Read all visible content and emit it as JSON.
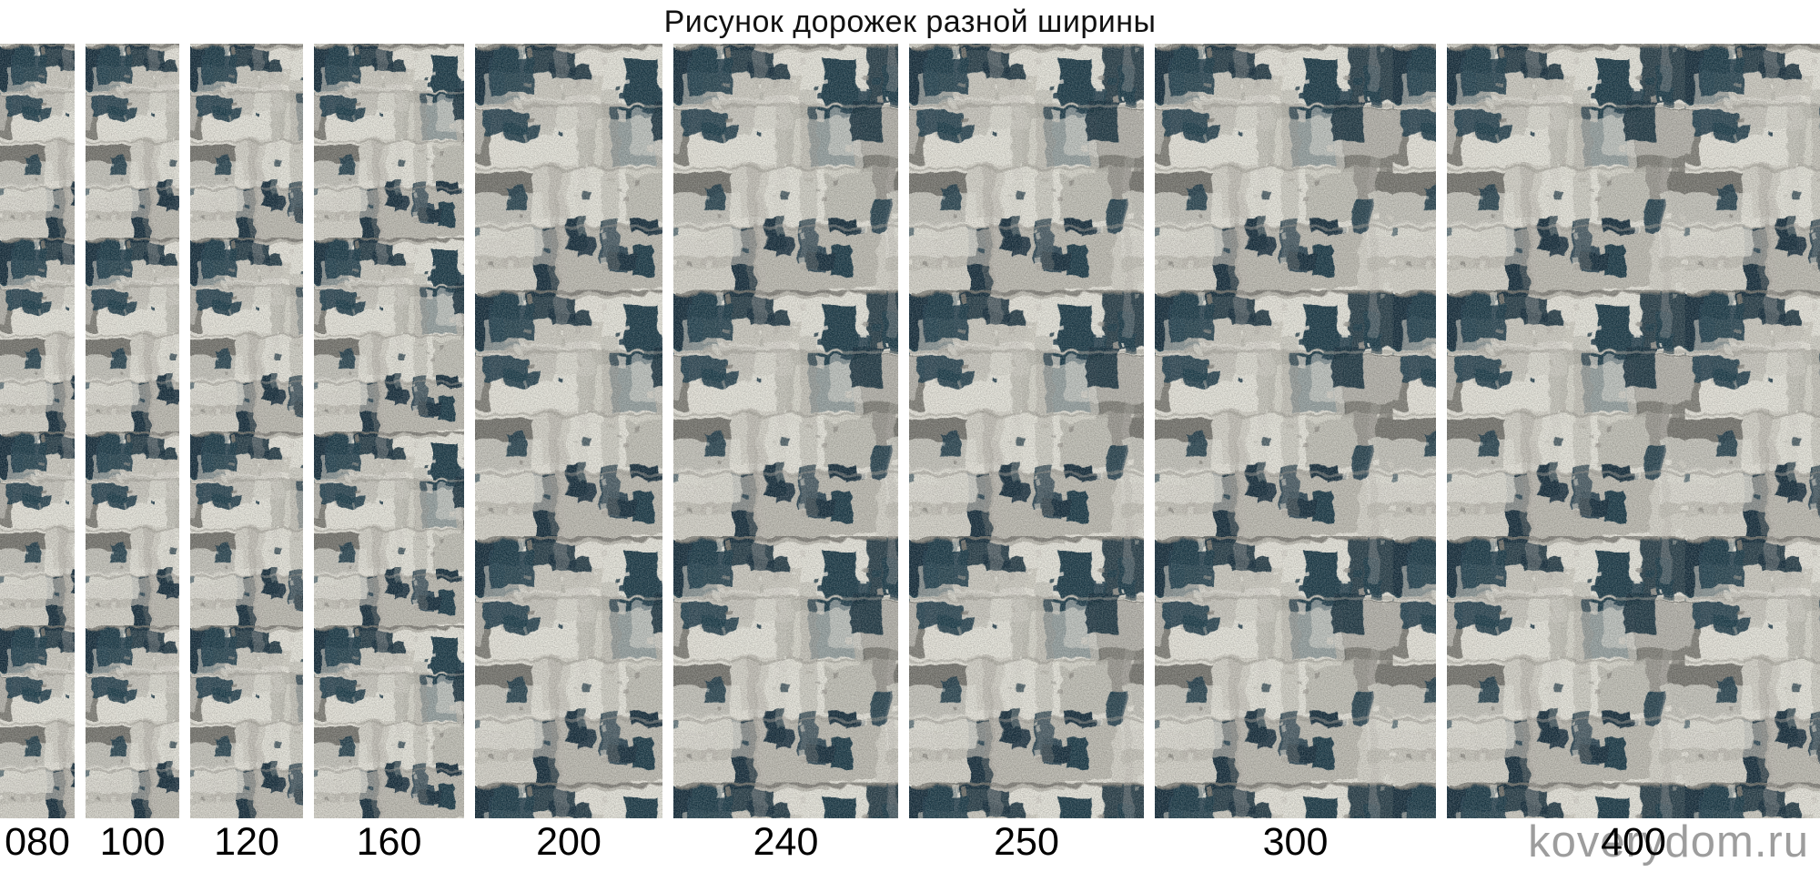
{
  "title": "Рисунок дорожек разной ширины",
  "watermark": "koverydom.ru",
  "strips": {
    "sizes": [
      "080",
      "100",
      "120",
      "160",
      "200",
      "240",
      "250",
      "300",
      "400"
    ],
    "widths_cm": [
      80,
      100,
      120,
      160,
      200,
      240,
      250,
      300,
      400
    ]
  },
  "palette": {
    "background": "#ffffff",
    "title_color": "#111111",
    "label_color": "#000000",
    "watermark_color": "#9a9a9a",
    "carpet_base": "#e6e4db",
    "carpet_pale": "#d4d2c9",
    "carpet_light_gray": "#bdbbb2",
    "carpet_mid_gray": "#9b9992",
    "carpet_dark_gray": "#77766f",
    "carpet_navy": "#1d3b4a",
    "carpet_navy_dark": "#142e3c"
  }
}
